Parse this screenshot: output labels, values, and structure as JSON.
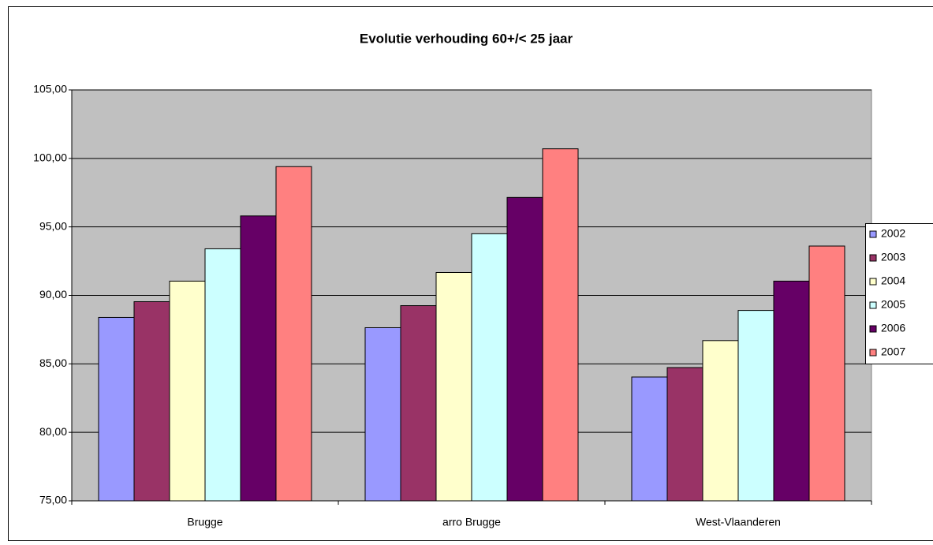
{
  "chart_data": {
    "type": "bar",
    "title": "Evolutie verhouding 60+/< 25 jaar",
    "categories": [
      "Brugge",
      "arro Brugge",
      "West-Vlaanderen"
    ],
    "series": [
      {
        "name": "2002",
        "color": "#9999ff",
        "values": [
          88.39,
          87.64,
          84.04
        ]
      },
      {
        "name": "2003",
        "color": "#993366",
        "values": [
          89.54,
          89.25,
          84.73
        ]
      },
      {
        "name": "2004",
        "color": "#ffffcc",
        "values": [
          91.04,
          91.67,
          86.7
        ]
      },
      {
        "name": "2005",
        "color": "#ccffff",
        "values": [
          93.4,
          94.5,
          88.9
        ]
      },
      {
        "name": "2006",
        "color": "#660066",
        "values": [
          95.8,
          97.15,
          91.04
        ]
      },
      {
        "name": "2007",
        "color": "#ff8080",
        "values": [
          99.4,
          100.7,
          93.6
        ]
      }
    ],
    "ylim": [
      75,
      105
    ],
    "yticks": [
      {
        "value": 75,
        "label": "75,00"
      },
      {
        "value": 80,
        "label": "80,00"
      },
      {
        "value": 85,
        "label": "85,00"
      },
      {
        "value": 90,
        "label": "90,00"
      },
      {
        "value": 95,
        "label": "95,00"
      },
      {
        "value": 100,
        "label": "100,00"
      },
      {
        "value": 105,
        "label": "105,00"
      }
    ],
    "grid": true,
    "legend": "right"
  }
}
